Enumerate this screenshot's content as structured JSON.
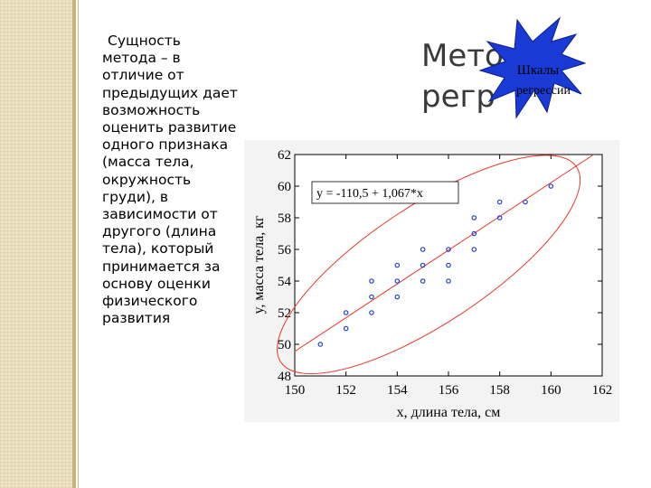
{
  "slide": {
    "left_text": "Сущность метода – в отличие от предыдущих дает возможность оценить развитие одного признака (масса тела, окружность груди), в зависимости от другого (длина тела), который принимается за основу оценки физического развития",
    "title_line1": "Метод",
    "title_line2": "регр",
    "callout": {
      "line1": "Шкалы",
      "line2": "регрессии",
      "fill_color": "#1a3ad6"
    }
  },
  "chart_data": {
    "type": "scatter",
    "title": "",
    "xlabel": "x, длина тела, см",
    "ylabel": "y, масса тела, кг",
    "xlim": [
      150,
      162
    ],
    "ylim": [
      48,
      62
    ],
    "xticks": [
      "150",
      "152",
      "154",
      "156",
      "158",
      "160",
      "162"
    ],
    "yticks": [
      "48",
      "50",
      "52",
      "54",
      "56",
      "58",
      "60",
      "62"
    ],
    "equation": "y = -110,5 + 1,067*x",
    "regression": {
      "intercept": -110.5,
      "slope": 1.067
    },
    "points": [
      [
        151,
        50
      ],
      [
        152,
        51
      ],
      [
        152,
        52
      ],
      [
        153,
        52
      ],
      [
        153,
        53
      ],
      [
        153,
        54
      ],
      [
        154,
        53
      ],
      [
        154,
        54
      ],
      [
        154,
        55
      ],
      [
        155,
        54
      ],
      [
        155,
        55
      ],
      [
        155,
        56
      ],
      [
        156,
        54
      ],
      [
        156,
        55
      ],
      [
        156,
        56
      ],
      [
        157,
        56
      ],
      [
        157,
        57
      ],
      [
        157,
        58
      ],
      [
        158,
        58
      ],
      [
        158,
        59
      ],
      [
        159,
        59
      ],
      [
        160,
        60
      ]
    ],
    "point_color": "#1f3fd1",
    "line_color": "#e8392a",
    "ellipse_color": "#e8392a",
    "grid": false
  }
}
